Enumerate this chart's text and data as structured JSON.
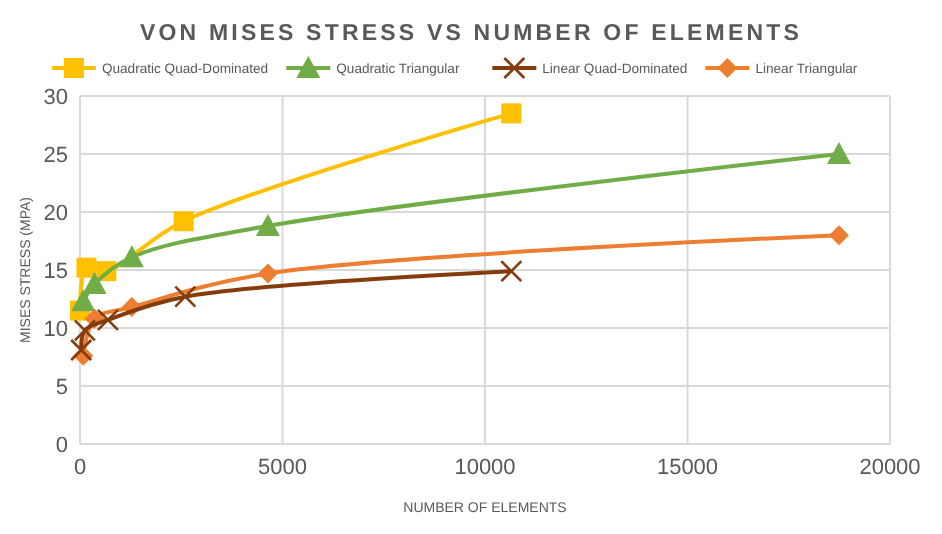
{
  "chart_data": {
    "type": "line",
    "title": "VON MISES STRESS VS NUMBER OF ELEMENTS",
    "xlabel": "NUMBER OF ELEMENTS",
    "ylabel": "MISES STRESS (MPA)",
    "xlim": [
      0,
      20000
    ],
    "xticks": [
      0,
      5000,
      10000,
      15000,
      20000
    ],
    "ylim": [
      0,
      30
    ],
    "yticks": [
      0,
      5,
      10,
      15,
      20,
      25,
      30
    ],
    "grid": true,
    "legend": "top",
    "series": [
      {
        "name": "Quadratic Quad-Dominated",
        "color": "#ffc000",
        "marker": "square",
        "x": [
          0,
          160,
          650,
          2560,
          10650
        ],
        "values": [
          11.5,
          15.2,
          14.9,
          19.2,
          28.5
        ]
      },
      {
        "name": "Quadratic Triangular",
        "color": "#70ad47",
        "marker": "triangle",
        "x": [
          80,
          360,
          1280,
          4640,
          18740
        ],
        "values": [
          12.3,
          13.8,
          16.1,
          18.8,
          25.0
        ]
      },
      {
        "name": "Linear Quad-Dominated",
        "color": "#843c0c",
        "marker": "cross",
        "x": [
          30,
          120,
          690,
          2600,
          10650
        ],
        "values": [
          8.1,
          9.8,
          10.7,
          12.7,
          14.9
        ]
      },
      {
        "name": "Linear Triangular",
        "color": "#ed7d31",
        "marker": "diamond",
        "x": [
          80,
          360,
          1280,
          4640,
          18740
        ],
        "values": [
          7.6,
          10.8,
          11.8,
          14.7,
          18.0
        ]
      }
    ]
  }
}
